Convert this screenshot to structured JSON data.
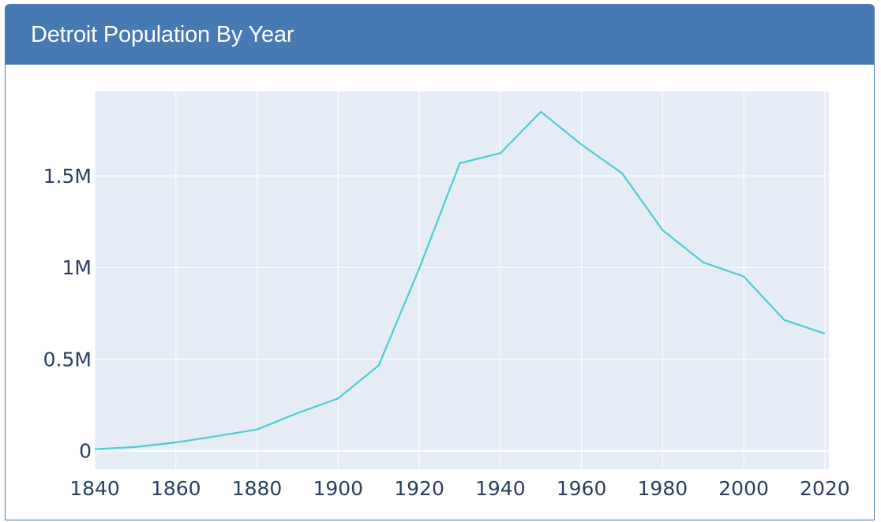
{
  "panel": {
    "title": "Detroit Population By Year"
  },
  "colors": {
    "header_bg": "#4779b3",
    "plot_bg": "#e5ecf6",
    "grid": "#ffffff",
    "line": "#4ecdd3",
    "tick_text": "#2a3f5f"
  },
  "chart_data": {
    "type": "line",
    "title": "",
    "xlabel": "",
    "ylabel": "",
    "xlim": [
      1840,
      2021
    ],
    "ylim": [
      -100000,
      1960000
    ],
    "grid": true,
    "x_ticks": [
      1840,
      1860,
      1880,
      1900,
      1920,
      1940,
      1960,
      1980,
      2000,
      2020
    ],
    "x_tick_labels": [
      "1840",
      "1860",
      "1880",
      "1900",
      "1920",
      "1940",
      "1960",
      "1980",
      "2000",
      "2020"
    ],
    "y_ticks": [
      0,
      500000,
      1000000,
      1500000
    ],
    "y_tick_labels": [
      "0",
      "0.5M",
      "1M",
      "1.5M"
    ],
    "series": [
      {
        "x": [
          1840,
          1850,
          1860,
          1870,
          1880,
          1890,
          1900,
          1910,
          1920,
          1930,
          1940,
          1950,
          1960,
          1970,
          1980,
          1990,
          2000,
          2010,
          2020
        ],
        "values": [
          9102,
          21019,
          45619,
          79577,
          116340,
          205876,
          285704,
          465766,
          993678,
          1568662,
          1623452,
          1849568,
          1670144,
          1514063,
          1203368,
          1027974,
          951270,
          713777,
          639111
        ]
      }
    ]
  }
}
